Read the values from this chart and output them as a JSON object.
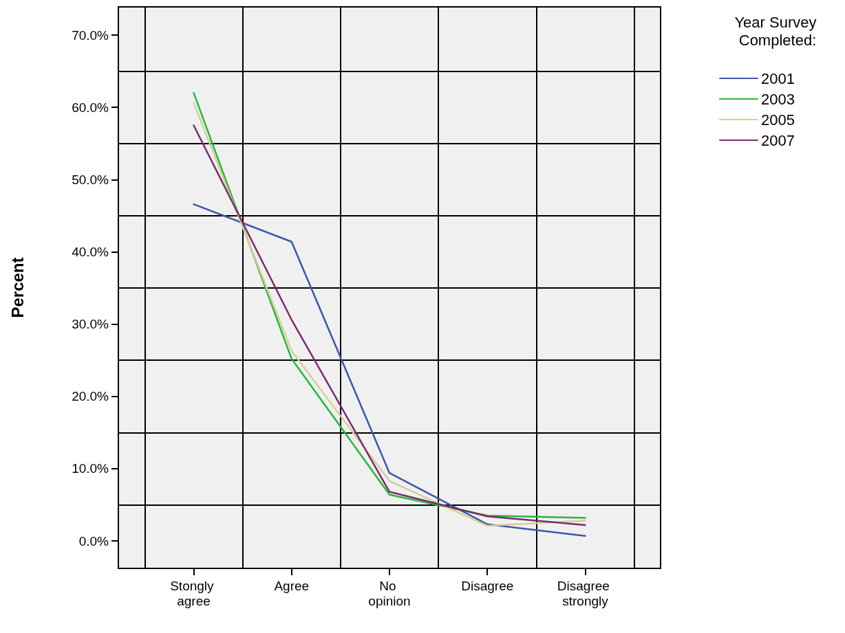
{
  "chart_data": {
    "type": "line",
    "ylabel": "Percent",
    "legend_title": "Year Survey Completed:",
    "categories": [
      "Stongly agree",
      "Agree",
      "No opinion",
      "Disagree",
      "Disagree strongly"
    ],
    "series": [
      {
        "name": "2001",
        "color": "#3a56a8",
        "values": [
          46.6,
          41.4,
          9.4,
          2.3,
          0.7
        ]
      },
      {
        "name": "2003",
        "color": "#22b83a",
        "values": [
          62.0,
          25.2,
          6.4,
          3.5,
          3.2
        ]
      },
      {
        "name": "2005",
        "color": "#d4cf9a",
        "values": [
          60.6,
          26.3,
          8.3,
          2.1,
          2.8
        ]
      },
      {
        "name": "2007",
        "color": "#7a2a6e",
        "values": [
          57.5,
          30.6,
          6.8,
          3.4,
          2.2
        ]
      }
    ],
    "ylim": [
      -3.8,
      73.9
    ],
    "yticks": [
      {
        "value": 0,
        "label": "0.0%"
      },
      {
        "value": 10,
        "label": "10.0%"
      },
      {
        "value": 20,
        "label": "20.0%"
      },
      {
        "value": 30,
        "label": "30.0%"
      },
      {
        "value": 40,
        "label": "40.0%"
      },
      {
        "value": 50,
        "label": "50.0%"
      },
      {
        "value": 60,
        "label": "60.0%"
      },
      {
        "value": 70,
        "label": "70.0%"
      }
    ],
    "grid": true,
    "legend": "top right",
    "marker": "none",
    "line_style": "solid"
  }
}
